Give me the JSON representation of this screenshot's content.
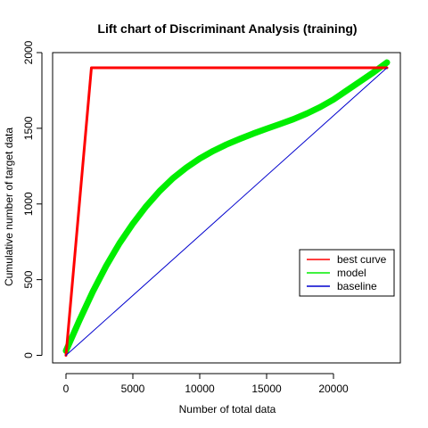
{
  "chart_data": {
    "type": "line",
    "title": "Lift chart of Discriminant Analysis (training)",
    "xlabel": "Number of total data",
    "ylabel": "Cumulative number of target data",
    "xlim": [
      -1000,
      25000
    ],
    "ylim": [
      -50,
      2000
    ],
    "xticks": [
      0,
      5000,
      10000,
      15000,
      20000
    ],
    "yticks": [
      0,
      500,
      1000,
      1500,
      2000
    ],
    "grid": false,
    "legend_position": "right",
    "series": [
      {
        "name": "best curve",
        "color": "#ff0000",
        "x": [
          0,
          1900,
          24000
        ],
        "y": [
          0,
          1900,
          1900
        ]
      },
      {
        "name": "model",
        "color": "#00ee00",
        "x": [
          0,
          1000,
          2000,
          3000,
          4000,
          5000,
          6000,
          7000,
          8000,
          9000,
          10000,
          11000,
          12000,
          13000,
          14000,
          15000,
          16000,
          17000,
          18000,
          19000,
          20000,
          21000,
          22000,
          23000,
          24000
        ],
        "y": [
          30,
          230,
          420,
          590,
          740,
          870,
          985,
          1085,
          1170,
          1240,
          1300,
          1350,
          1393,
          1430,
          1465,
          1497,
          1528,
          1560,
          1597,
          1640,
          1690,
          1750,
          1810,
          1870,
          1935
        ]
      },
      {
        "name": "baseline",
        "color": "#0000cd",
        "x": [
          0,
          24000
        ],
        "y": [
          0,
          1900
        ]
      }
    ]
  }
}
